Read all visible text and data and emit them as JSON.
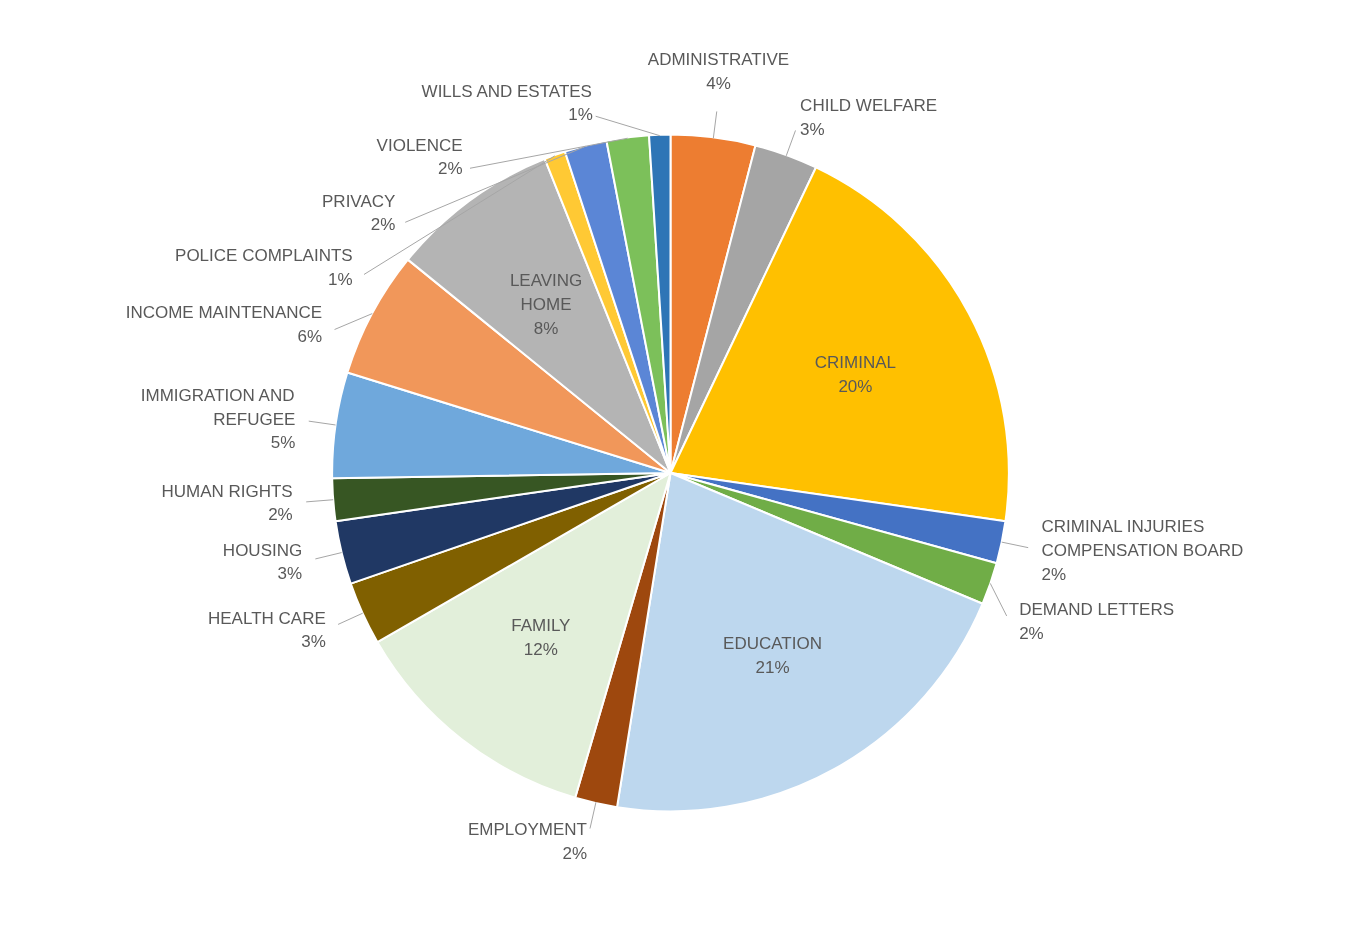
{
  "chart_data": {
    "type": "pie",
    "categories": [
      "ADMINISTRATIVE",
      "CHILD WELFARE",
      "CRIMINAL",
      "CRIMINAL INJURIES COMPENSATION BOARD",
      "DEMAND LETTERS",
      "EDUCATION",
      "EMPLOYMENT",
      "FAMILY",
      "HEALTH CARE",
      "HOUSING",
      "HUMAN RIGHTS",
      "IMMIGRATION AND REFUGEE",
      "INCOME MAINTENANCE",
      "LEAVING HOME",
      "POLICE COMPLAINTS",
      "PRIVACY",
      "VIOLENCE",
      "WILLS AND ESTATES"
    ],
    "values": [
      4,
      3,
      20,
      2,
      2,
      21,
      2,
      12,
      3,
      3,
      2,
      5,
      6,
      8,
      1,
      2,
      2,
      1
    ],
    "value_labels": [
      "4%",
      "3%",
      "20%",
      "2%",
      "2%",
      "21%",
      "2%",
      "12%",
      "3%",
      "3%",
      "2%",
      "5%",
      "6%",
      "8%",
      "1%",
      "2%",
      "2%",
      "1%"
    ],
    "colors": [
      "#ed7d31",
      "#a5a5a5",
      "#ffc000",
      "#4472c4",
      "#70ad47",
      "#bdd7ee",
      "#9e480e",
      "#e2efda",
      "#806000",
      "#203864",
      "#375623",
      "#6fa8dc",
      "#f1975a",
      "#b4b4b4",
      "#ffc934",
      "#5b86d6",
      "#7cc05a",
      "#2e75b6"
    ]
  }
}
